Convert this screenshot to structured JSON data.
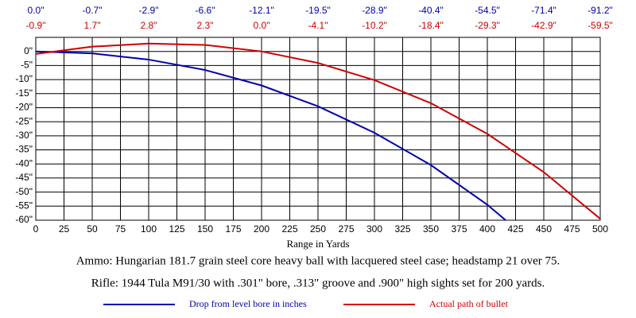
{
  "chart_data": {
    "type": "line",
    "x_label": "Range in Yards",
    "notes": [
      "Ammo:  Hungarian 181.7 grain steel core heavy ball with lacquered steel case; headstamp 21 over 75.",
      "Rifle:  1944 Tula M91/30 with .301\" bore, .313\" groove and .900\" high sights set for 200 yards."
    ],
    "x": [
      0,
      50,
      100,
      150,
      200,
      250,
      300,
      350,
      400,
      450,
      500
    ],
    "series": [
      {
        "name": "Drop from level bore in inches",
        "color": "#0000b0",
        "values": [
          0,
          -0.7,
          -2.9,
          -6.6,
          -12.1,
          -19.5,
          -28.9,
          -40.4,
          -54.5,
          -71.4,
          -91.2
        ],
        "value_labels": [
          "0.0\"",
          "-0.7\"",
          "-2.9\"",
          "-6.6\"",
          "-12.1\"",
          "-19.5\"",
          "-28.9\"",
          "-40.4\"",
          "-54.5\"",
          "-71.4\"",
          "-91.2\""
        ]
      },
      {
        "name": "Actual path of bullet",
        "color": "#d00000",
        "values": [
          -0.9,
          1.7,
          2.8,
          2.3,
          0.0,
          -4.1,
          -10.2,
          -18.4,
          -29.3,
          -42.9,
          -59.5
        ],
        "value_labels": [
          "-0.9\"",
          "1.7\"",
          "2.8\"",
          "2.3\"",
          "0.0\"",
          "-4.1\"",
          "-10.2\"",
          "-18.4\"",
          "-29.3\"",
          "-42.9\"",
          "-59.5\""
        ]
      }
    ],
    "xlim": [
      0,
      500
    ],
    "xticks": [
      0,
      25,
      50,
      75,
      100,
      125,
      150,
      175,
      200,
      225,
      250,
      275,
      300,
      325,
      350,
      375,
      400,
      425,
      450,
      475,
      500
    ],
    "ylim": [
      -60,
      5
    ],
    "yticks": [
      {
        "value": 0,
        "label": "0\""
      },
      {
        "value": -5,
        "label": "-5\""
      },
      {
        "value": -10,
        "label": "-10\""
      },
      {
        "value": -15,
        "label": "-15\""
      },
      {
        "value": -20,
        "label": "-20\""
      },
      {
        "value": -25,
        "label": "-25\""
      },
      {
        "value": -30,
        "label": "-30\""
      },
      {
        "value": -35,
        "label": "-35\""
      },
      {
        "value": -40,
        "label": "-40\""
      },
      {
        "value": -45,
        "label": "-45\""
      },
      {
        "value": -50,
        "label": "-50\""
      },
      {
        "value": -55,
        "label": "-55\""
      },
      {
        "value": -60,
        "label": "-60\""
      }
    ],
    "grid": true
  }
}
